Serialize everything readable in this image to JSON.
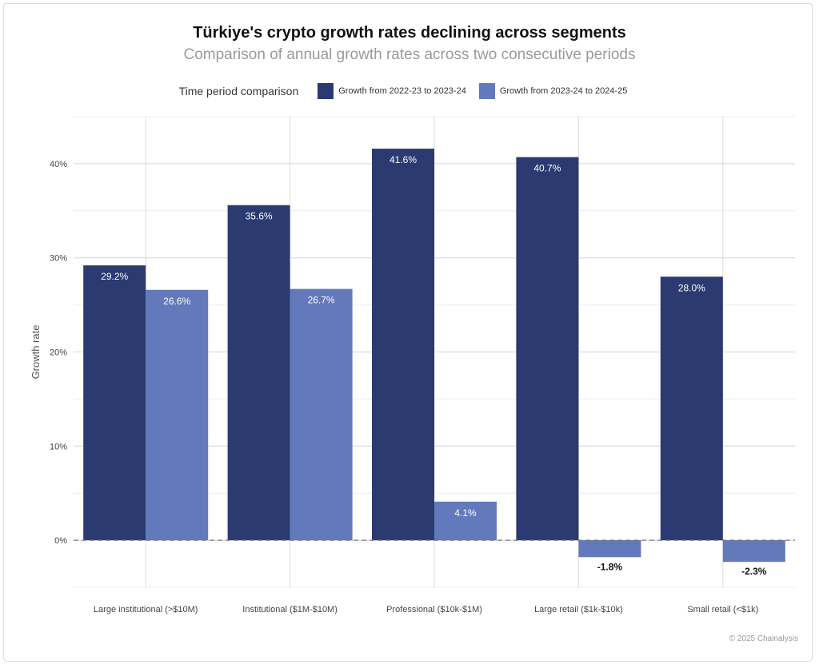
{
  "header": {
    "title": "Türkiye's crypto growth rates declining across segments",
    "subtitle": "Comparison of annual growth rates across two consecutive periods"
  },
  "legend": {
    "title": "Time period comparison",
    "items": [
      {
        "label": "Growth from 2022-23 to 2023-24",
        "color": "#2b3a70"
      },
      {
        "label": "Growth from 2023-24 to 2024-25",
        "color": "#6279bb"
      }
    ]
  },
  "credit": "© 2025 Chainalysis",
  "chart_data": {
    "type": "bar",
    "title": "Türkiye's crypto growth rates declining across segments",
    "subtitle": "Comparison of annual growth rates across two consecutive periods",
    "xlabel": "",
    "ylabel": "Growth rate",
    "ylim": [
      -5,
      45
    ],
    "yticks": [
      0,
      10,
      20,
      30,
      40
    ],
    "ytick_labels": [
      "0%",
      "10%",
      "20%",
      "30%",
      "40%"
    ],
    "grid": true,
    "legend_position": "top",
    "categories": [
      "Large institutional (>$10M)",
      "Institutional ($1M-$10M)",
      "Professional ($10k-$1M)",
      "Large retail ($1k-$10k)",
      "Small retail (<$1k)"
    ],
    "series": [
      {
        "name": "Growth from 2022-23 to 2023-24",
        "color": "#2b3a70",
        "values": [
          29.2,
          35.6,
          41.6,
          40.7,
          28.0
        ],
        "labels": [
          "29.2%",
          "35.6%",
          "41.6%",
          "40.7%",
          "28.0%"
        ]
      },
      {
        "name": "Growth from 2023-24 to 2024-25",
        "color": "#6279bb",
        "values": [
          26.6,
          26.7,
          4.1,
          -1.8,
          -2.3
        ],
        "labels": [
          "26.6%",
          "26.7%",
          "4.1%",
          "-1.8%",
          "-2.3%"
        ]
      }
    ]
  }
}
